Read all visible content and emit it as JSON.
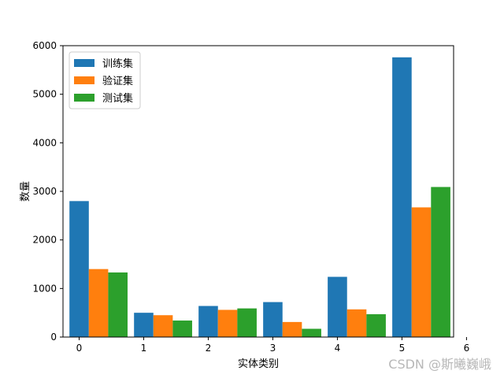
{
  "chart_data": {
    "type": "bar",
    "xlabel": "实体类别",
    "ylabel": "数量",
    "categories": [
      "0",
      "1",
      "2",
      "3",
      "4",
      "5"
    ],
    "x_ticks": [
      "0",
      "1",
      "2",
      "3",
      "4",
      "5",
      "6"
    ],
    "y_ticks": [
      "0",
      "1000",
      "2000",
      "3000",
      "4000",
      "5000",
      "6000"
    ],
    "xlim": [
      -0.25,
      5.8
    ],
    "ylim": [
      0,
      6000
    ],
    "grid": false,
    "legend_position": "top-left",
    "series": [
      {
        "name": "训练集",
        "color": "#1f77b4",
        "values": [
          2800,
          500,
          640,
          720,
          1240,
          5760
        ]
      },
      {
        "name": "验证集",
        "color": "#ff7f0e",
        "values": [
          1400,
          450,
          560,
          310,
          570,
          2670
        ]
      },
      {
        "name": "测试集",
        "color": "#2ca02c",
        "values": [
          1330,
          340,
          590,
          170,
          470,
          3090
        ]
      }
    ]
  },
  "watermark": "CSDN @斯曦巍峨"
}
